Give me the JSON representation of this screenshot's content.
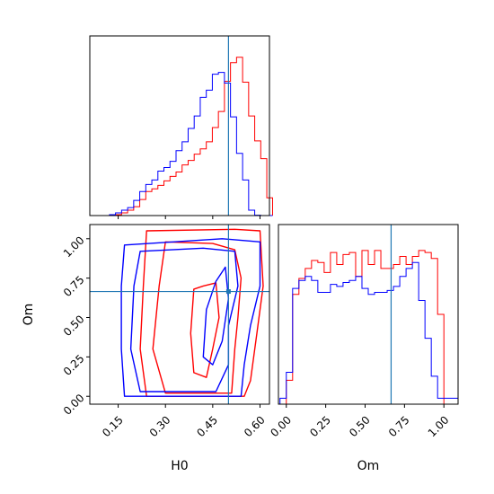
{
  "colors": {
    "series_a": "#ff0000",
    "series_b": "#0000ff",
    "truth": "#1f77b4",
    "frame": "#000000"
  },
  "chart_data": [
    {
      "type": "histogram",
      "panel": "H0 marginal",
      "x_range": [
        0.06,
        0.63
      ],
      "truth": 0.5,
      "bin_edges": [
        0.1224,
        0.1416,
        0.1608,
        0.18,
        0.1992,
        0.2184,
        0.2376,
        0.2568,
        0.276,
        0.2952,
        0.3144,
        0.3336,
        0.3528,
        0.372,
        0.3912,
        0.4104,
        0.4296,
        0.4488,
        0.468,
        0.4872,
        0.5064,
        0.5256,
        0.5448,
        0.564,
        0.5832,
        0.6024,
        0.6216,
        0.64
      ],
      "series": [
        {
          "color_key": "series_a",
          "counts": [
            0.2,
            0.5,
            1.5,
            3.0,
            5.0,
            9.0,
            13.5,
            15.0,
            17.0,
            19.5,
            22.0,
            24.5,
            28.5,
            31.0,
            34.5,
            37.5,
            41.5,
            49.5,
            58.5,
            75.5,
            86.0,
            89.0,
            75.0,
            56.0,
            42.0,
            32.0,
            10.0
          ]
        },
        {
          "color_key": "series_b",
          "counts": [
            0.5,
            1.5,
            3.0,
            4.5,
            8.5,
            13.5,
            17.5,
            20.0,
            25.0,
            27.0,
            30.5,
            36.5,
            41.5,
            49.0,
            56.0,
            66.5,
            70.5,
            79.5,
            80.5,
            74.5,
            55.5,
            35.0,
            20.0,
            3.0,
            0.2,
            0,
            0
          ]
        }
      ],
      "ylim": [
        0,
        101
      ]
    },
    {
      "type": "contour",
      "panel": "H0 vs Om joint",
      "x_range": [
        0.06,
        0.63
      ],
      "y_range": [
        -0.05,
        1.09
      ],
      "truth": {
        "H0": 0.5,
        "Om": 0.665
      },
      "xticks": [
        "0.15",
        "0.30",
        "0.45",
        "0.60"
      ],
      "yticks": [
        "0.00",
        "0.25",
        "0.50",
        "0.75",
        "1.00"
      ],
      "xlabel": "H0",
      "ylabel": "Om",
      "contours": [
        {
          "color_key": "series_a",
          "points": [
            [
              0.24,
              1.05
            ],
            [
              0.52,
              1.06
            ],
            [
              0.6,
              1.05
            ],
            [
              0.61,
              0.7
            ],
            [
              0.59,
              0.4
            ],
            [
              0.57,
              0.1
            ],
            [
              0.55,
              0.0
            ],
            [
              0.24,
              0.0
            ],
            [
              0.22,
              0.3
            ],
            [
              0.23,
              0.7
            ]
          ]
        },
        {
          "color_key": "series_a",
          "points": [
            [
              0.3,
              0.98
            ],
            [
              0.45,
              0.97
            ],
            [
              0.52,
              0.93
            ],
            [
              0.54,
              0.75
            ],
            [
              0.53,
              0.5
            ],
            [
              0.52,
              0.3
            ],
            [
              0.51,
              0.02
            ],
            [
              0.3,
              0.02
            ],
            [
              0.26,
              0.3
            ],
            [
              0.28,
              0.7
            ]
          ]
        },
        {
          "color_key": "series_a",
          "points": [
            [
              0.39,
              0.68
            ],
            [
              0.42,
              0.7
            ],
            [
              0.46,
              0.72
            ],
            [
              0.47,
              0.5
            ],
            [
              0.45,
              0.3
            ],
            [
              0.43,
              0.12
            ],
            [
              0.39,
              0.15
            ],
            [
              0.38,
              0.4
            ]
          ]
        },
        {
          "color_key": "series_b",
          "points": [
            [
              0.17,
              0.96
            ],
            [
              0.48,
              1.0
            ],
            [
              0.6,
              0.98
            ],
            [
              0.6,
              0.7
            ],
            [
              0.57,
              0.45
            ],
            [
              0.55,
              0.2
            ],
            [
              0.54,
              0.0
            ],
            [
              0.17,
              0.0
            ],
            [
              0.16,
              0.3
            ],
            [
              0.16,
              0.7
            ]
          ]
        },
        {
          "color_key": "series_b",
          "points": [
            [
              0.22,
              0.92
            ],
            [
              0.42,
              0.94
            ],
            [
              0.52,
              0.92
            ],
            [
              0.53,
              0.7
            ],
            [
              0.5,
              0.45
            ],
            [
              0.5,
              0.2
            ],
            [
              0.46,
              0.03
            ],
            [
              0.22,
              0.03
            ],
            [
              0.19,
              0.3
            ],
            [
              0.2,
              0.7
            ]
          ]
        },
        {
          "color_key": "series_b",
          "points": [
            [
              0.46,
              0.73
            ],
            [
              0.49,
              0.82
            ],
            [
              0.5,
              0.62
            ],
            [
              0.48,
              0.35
            ],
            [
              0.45,
              0.2
            ],
            [
              0.42,
              0.25
            ],
            [
              0.43,
              0.55
            ]
          ]
        }
      ]
    },
    {
      "type": "histogram",
      "panel": "Om marginal",
      "x_range": [
        -0.05,
        1.09
      ],
      "xticks": [
        "0.00",
        "0.25",
        "0.50",
        "0.75",
        "1.00"
      ],
      "xlabel": "Om",
      "truth": 0.665,
      "bin_edges": [
        -0.04,
        0.0,
        0.04,
        0.08,
        0.12,
        0.16,
        0.2,
        0.24,
        0.28,
        0.32,
        0.36,
        0.4,
        0.44,
        0.48,
        0.52,
        0.56,
        0.6,
        0.64,
        0.68,
        0.72,
        0.76,
        0.8,
        0.84,
        0.88,
        0.92,
        0.96,
        1.0,
        1.04,
        1.09
      ],
      "series": [
        {
          "color_key": "series_a",
          "counts": [
            0,
            12,
            55,
            63,
            68,
            72,
            71,
            66,
            76,
            70,
            75,
            76,
            64,
            77,
            70,
            77,
            68,
            68,
            70,
            74,
            70,
            74,
            77,
            76,
            73,
            45,
            0,
            0
          ]
        },
        {
          "color_key": "series_b",
          "counts": [
            3,
            16,
            58,
            62,
            64,
            62,
            56,
            56,
            60,
            59,
            61,
            62,
            64,
            58,
            55,
            56,
            56,
            57,
            59,
            64,
            68,
            71,
            52,
            33,
            14,
            3,
            3,
            3
          ]
        }
      ],
      "ylim": [
        0,
        90
      ]
    }
  ]
}
